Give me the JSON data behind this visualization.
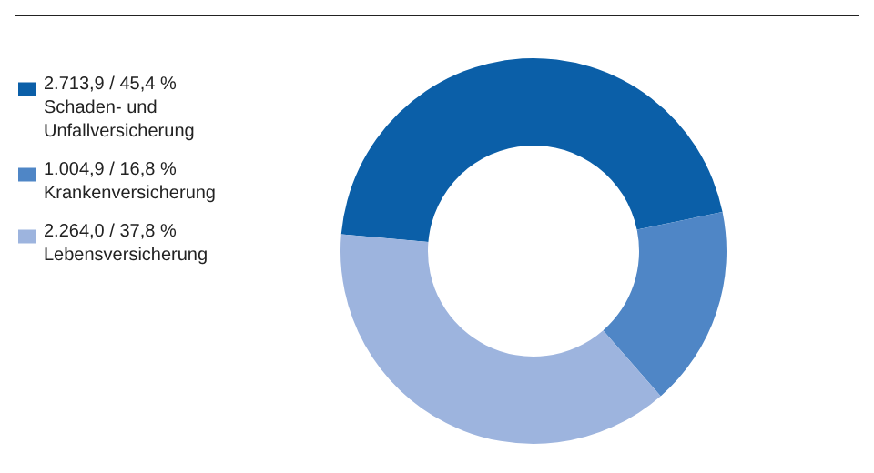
{
  "chart_data": {
    "type": "donut",
    "categories": [
      "Schaden- und Unfallversicherung",
      "Krankenversicherung",
      "Lebensversicherung"
    ],
    "values": [
      2713.9,
      1004.9,
      2264.0
    ],
    "value_labels": [
      "2.713,9 / 45,4 %",
      "1.004,9 / 16,8 %",
      "2.264,0 / 37,8 %"
    ],
    "colors": [
      "#0b5fa8",
      "#4f86c6",
      "#9db4de"
    ],
    "legend": "left"
  }
}
